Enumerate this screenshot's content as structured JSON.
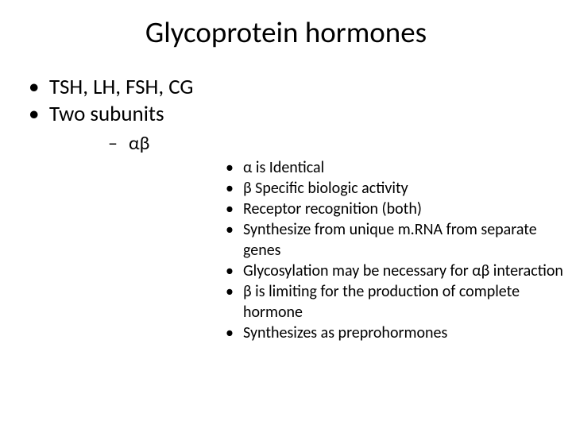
{
  "title": "Glycoprotein hormones",
  "level1": [
    "TSH, LH, FSH, CG",
    "Two subunits"
  ],
  "level2": "αβ",
  "level3": [
    "α  is Identical",
    "β Specific biologic activity",
    "Receptor recognition (both)",
    "Synthesize from unique m.RNA from separate genes",
    "Glycosylation may be necessary for αβ interaction",
    "β  is limiting for the production of complete hormone",
    "Synthesizes as preprohormones"
  ],
  "colors": {
    "background": "#ffffff",
    "text": "#000000"
  },
  "typography": {
    "title_fontsize": 37,
    "level1_fontsize": 27,
    "level2_fontsize": 24,
    "level3_fontsize": 20,
    "font_family": "Calibri"
  }
}
